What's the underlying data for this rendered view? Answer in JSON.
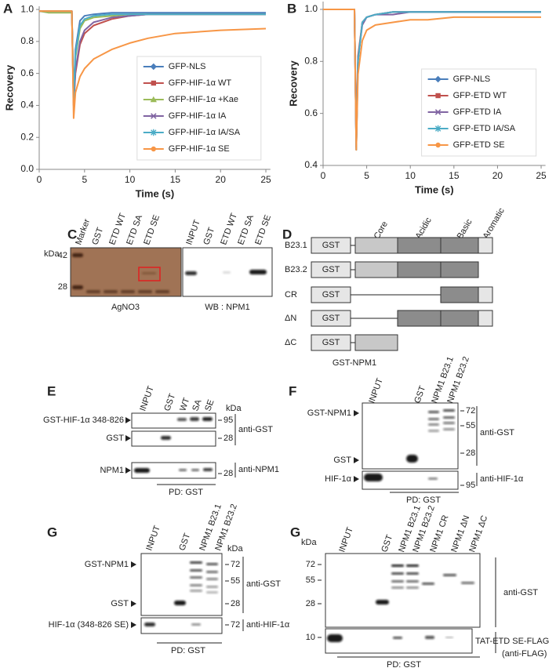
{
  "chart_data": [
    {
      "type": "line",
      "panel_label": "A",
      "xlabel": "Time (s)",
      "ylabel": "Recovery",
      "x": [
        0,
        1,
        2,
        3.6,
        3.8,
        4,
        4.5,
        5,
        6,
        8,
        10,
        12,
        15,
        20,
        25
      ],
      "xlim": [
        0,
        25.5
      ],
      "xticks": [
        0,
        5,
        10,
        15,
        20,
        25
      ],
      "ylim": [
        0,
        1.02
      ],
      "yticks": [
        {
          "value": 0,
          "label": "0.0"
        },
        0.2,
        0.4,
        0.6,
        0.8,
        {
          "value": 1,
          "label": "1.0"
        }
      ],
      "legend": "lower right",
      "series": [
        {
          "name": "GFP-NLS",
          "color": "#4a7ebb",
          "marker": "diamond",
          "values": [
            0.99,
            0.99,
            0.99,
            0.99,
            0.45,
            0.75,
            0.93,
            0.96,
            0.97,
            0.98,
            0.98,
            0.98,
            0.98,
            0.98,
            0.98
          ]
        },
        {
          "name": "GFP-HIF-1α WT",
          "color": "#c0504d",
          "marker": "square",
          "values": [
            0.99,
            0.99,
            0.99,
            0.99,
            0.4,
            0.6,
            0.78,
            0.85,
            0.9,
            0.94,
            0.96,
            0.97,
            0.97,
            0.97,
            0.97
          ]
        },
        {
          "name": "GFP-HIF-1α +Kae",
          "color": "#9bbb59",
          "marker": "triangle",
          "values": [
            0.99,
            0.98,
            0.98,
            0.98,
            0.43,
            0.7,
            0.88,
            0.93,
            0.95,
            0.96,
            0.97,
            0.97,
            0.97,
            0.97,
            0.97
          ]
        },
        {
          "name": "GFP-HIF-1α IA",
          "color": "#8064a2",
          "marker": "x",
          "values": [
            0.99,
            0.99,
            0.99,
            0.99,
            0.4,
            0.62,
            0.8,
            0.87,
            0.92,
            0.95,
            0.96,
            0.97,
            0.97,
            0.97,
            0.97
          ]
        },
        {
          "name": "GFP-HIF-1α IA/SA",
          "color": "#4bacc6",
          "marker": "star",
          "values": [
            0.99,
            0.99,
            0.99,
            0.99,
            0.42,
            0.72,
            0.9,
            0.94,
            0.96,
            0.97,
            0.97,
            0.97,
            0.97,
            0.97,
            0.97
          ]
        },
        {
          "name": "GFP-HIF-1α SE",
          "color": "#f79646",
          "marker": "circle",
          "values": [
            0.99,
            0.99,
            0.99,
            0.99,
            0.32,
            0.48,
            0.58,
            0.63,
            0.69,
            0.75,
            0.79,
            0.82,
            0.85,
            0.87,
            0.88
          ]
        }
      ]
    },
    {
      "type": "line",
      "panel_label": "B",
      "xlabel": "Time (s)",
      "ylabel": "Recovery",
      "x": [
        0,
        1,
        2,
        3.6,
        3.8,
        4,
        4.5,
        5,
        6,
        8,
        10,
        12,
        15,
        20,
        25
      ],
      "xlim": [
        0,
        25.5
      ],
      "xticks": [
        0,
        5,
        10,
        15,
        20,
        25
      ],
      "ylim": [
        0.4,
        1.03
      ],
      "yticks": [
        0.4,
        0.6,
        0.8,
        {
          "value": 1,
          "label": "1.0"
        }
      ],
      "legend": "lower right",
      "series": [
        {
          "name": "GFP-NLS",
          "color": "#4a7ebb",
          "marker": "diamond",
          "values": [
            1.0,
            1.0,
            1.0,
            1.0,
            0.46,
            0.8,
            0.95,
            0.97,
            0.98,
            0.99,
            0.99,
            0.99,
            0.99,
            0.99,
            0.99
          ]
        },
        {
          "name": "GFP-ETD WT",
          "color": "#c0504d",
          "marker": "square",
          "values": [
            1.0,
            1.0,
            1.0,
            1.0,
            0.47,
            0.82,
            0.95,
            0.97,
            0.98,
            0.99,
            0.99,
            0.99,
            0.99,
            0.99,
            0.99
          ]
        },
        {
          "name": "GFP-ETD IA",
          "color": "#8064a2",
          "marker": "x",
          "values": [
            1.0,
            1.0,
            1.0,
            1.0,
            0.47,
            0.81,
            0.94,
            0.97,
            0.98,
            0.98,
            0.99,
            0.99,
            0.99,
            0.99,
            0.99
          ]
        },
        {
          "name": "GFP-ETD IA/SA",
          "color": "#4bacc6",
          "marker": "star",
          "values": [
            1.0,
            1.0,
            1.0,
            1.0,
            0.46,
            0.8,
            0.95,
            0.97,
            0.98,
            0.99,
            0.99,
            0.99,
            0.99,
            0.99,
            0.99
          ]
        },
        {
          "name": "GFP-ETD SE",
          "color": "#f79646",
          "marker": "circle",
          "values": [
            1.0,
            1.0,
            1.0,
            1.0,
            0.46,
            0.75,
            0.88,
            0.92,
            0.94,
            0.95,
            0.96,
            0.96,
            0.97,
            0.97,
            0.97
          ]
        }
      ]
    }
  ],
  "panels": {
    "C": {
      "label": "C",
      "kda": "kDa",
      "markers": [
        "42",
        "28"
      ],
      "silver_lanes": [
        "Marker",
        "GST",
        "ETD WT",
        "ETD SA",
        "ETD SE"
      ],
      "wb_lanes": [
        "INPUT",
        "GST",
        "ETD WT",
        "ETD SA",
        "ETD SE"
      ],
      "silver_caption": "AgNO3",
      "wb_caption": "WB : NPM1"
    },
    "D": {
      "label": "D",
      "domains": [
        "Core",
        "Acidic",
        "Basic",
        "Aromatic"
      ],
      "constructs": [
        "B23.1",
        "B23.2",
        "CR",
        "ΔN",
        "ΔC"
      ],
      "tag": "GST",
      "caption": "GST-NPM1"
    },
    "E": {
      "label": "E",
      "lanes": [
        "INPUT",
        "GST",
        "WT",
        "SA",
        "SE"
      ],
      "kda": "kDa",
      "rows": [
        "GST-HIF-1α 348-826",
        "GST",
        "NPM1"
      ],
      "markers": [
        "95",
        "28",
        "28"
      ],
      "antibodies": [
        "anti-GST",
        "anti-NPM1"
      ],
      "pulldown": "PD: GST"
    },
    "F": {
      "label": "F",
      "lanes": [
        "INPUT",
        "GST",
        "NPM1 B23.1",
        "NPM1 B23.2"
      ],
      "rows": [
        "GST-NPM1",
        "GST",
        "HIF-1α"
      ],
      "markers": [
        "72",
        "55",
        "28",
        "95"
      ],
      "antibodies": [
        "anti-GST",
        "anti-HIF-1α"
      ],
      "pulldown": "PD: GST"
    },
    "G1": {
      "label": "G",
      "lanes": [
        "INPUT",
        "GST",
        "NPM1 B23.1",
        "NPM1 B23.2"
      ],
      "kda": "kDa",
      "rows": [
        "GST-NPM1",
        "GST",
        "HIF-1α (348-826 SE)"
      ],
      "markers": [
        "72",
        "55",
        "28",
        "72"
      ],
      "antibodies": [
        "anti-GST",
        "anti-HIF-1α"
      ],
      "pulldown": "PD: GST"
    },
    "G2": {
      "label": "G",
      "kda": "kDa",
      "lanes": [
        "INPUT",
        "GST",
        "NPM1 B23.1",
        "NPM1 B23.2",
        "NPM1 CR",
        "NPM1 ΔN",
        "NPM1 ΔC"
      ],
      "markers": [
        "72",
        "55",
        "28",
        "10"
      ],
      "antibodies": [
        "anti-GST",
        "TAT-ETD SE-FLAG",
        "(anti-FLAG)"
      ],
      "pulldown": "PD: GST"
    }
  }
}
